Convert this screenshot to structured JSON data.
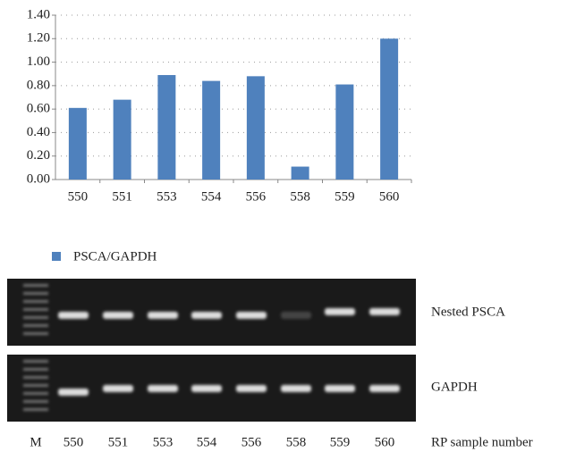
{
  "chart_data": {
    "type": "bar",
    "categories": [
      "550",
      "551",
      "553",
      "554",
      "556",
      "558",
      "559",
      "560"
    ],
    "series": [
      {
        "name": "PSCA/GAPDH",
        "color": "#4f81bd",
        "values": [
          0.61,
          0.68,
          0.89,
          0.84,
          0.88,
          0.11,
          0.81,
          1.2
        ]
      }
    ],
    "ylim": [
      0,
      1.4
    ],
    "yticks": [
      {
        "value": 0,
        "label": "0.00"
      },
      {
        "value": 0.2,
        "label": "0.20"
      },
      {
        "value": 0.4,
        "label": "0.40"
      },
      {
        "value": 0.6,
        "label": "0.60"
      },
      {
        "value": 0.8,
        "label": "0.80"
      },
      {
        "value": 1.0,
        "label": "1.00"
      },
      {
        "value": 1.2,
        "label": "1.20"
      },
      {
        "value": 1.4,
        "label": "1.40"
      }
    ],
    "grid": true
  },
  "gel": {
    "rows": [
      "Nested PSCA",
      "GAPDH"
    ],
    "lanes": [
      "M",
      "550",
      "551",
      "553",
      "554",
      "556",
      "558",
      "559",
      "560"
    ],
    "axis_label": "RP sample number"
  }
}
